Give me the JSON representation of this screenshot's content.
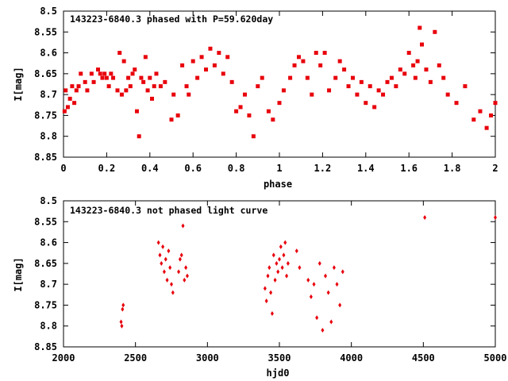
{
  "colors": {
    "points": "#e8000b",
    "axis": "#000000",
    "background": "#ffffff"
  },
  "chart_data": [
    {
      "type": "scatter",
      "title": "143223-6840.3 phased with P=59.620day",
      "xlabel": "phase",
      "ylabel": "I[mag]",
      "xlim": [
        0,
        2
      ],
      "ylim": [
        8.85,
        8.5
      ],
      "y_inverted": true,
      "grid": false,
      "xticks": [
        0,
        0.2,
        0.4,
        0.6,
        0.8,
        1,
        1.2,
        1.4,
        1.6,
        1.8,
        2
      ],
      "xtick_labels": [
        "0",
        "0.2",
        "0.4",
        "0.6",
        "0.8",
        "1",
        "1.2",
        "1.4",
        "1.6",
        "1.8",
        "2"
      ],
      "yticks": [
        8.5,
        8.55,
        8.6,
        8.65,
        8.7,
        8.75,
        8.8,
        8.85
      ],
      "ytick_labels": [
        "8.5",
        "8.55",
        "8.6",
        "8.65",
        "8.7",
        "8.75",
        "8.8",
        "8.85"
      ],
      "marker": "square",
      "series": [
        {
          "x": [
            0.005,
            0.01,
            0.02,
            0.03,
            0.04,
            0.05,
            0.06,
            0.07,
            0.08,
            0.1,
            0.11,
            0.13,
            0.14,
            0.16,
            0.17,
            0.18,
            0.19,
            0.2,
            0.21,
            0.22,
            0.23,
            0.25,
            0.26,
            0.27,
            0.28,
            0.29,
            0.3,
            0.31,
            0.32,
            0.33,
            0.34,
            0.35,
            0.36,
            0.37,
            0.38,
            0.39,
            0.4,
            0.41,
            0.42,
            0.43,
            0.45,
            0.47,
            0.5,
            0.51,
            0.53,
            0.55,
            0.57,
            0.58,
            0.6,
            0.62,
            0.64,
            0.66,
            0.68,
            0.7,
            0.72,
            0.74,
            0.76,
            0.78,
            0.8,
            0.82,
            0.84,
            0.86,
            0.88,
            0.9,
            0.92,
            0.95,
            0.97,
            1.0,
            1.02,
            1.05,
            1.07,
            1.09,
            1.11,
            1.13,
            1.15,
            1.17,
            1.19,
            1.21,
            1.23,
            1.26,
            1.28,
            1.3,
            1.32,
            1.34,
            1.36,
            1.38,
            1.4,
            1.42,
            1.44,
            1.46,
            1.48,
            1.5,
            1.52,
            1.54,
            1.56,
            1.58,
            1.6,
            1.62,
            1.63,
            1.64,
            1.65,
            1.66,
            1.68,
            1.7,
            1.72,
            1.74,
            1.76,
            1.78,
            1.82,
            1.86,
            1.9,
            1.93,
            1.96,
            1.98,
            2.0
          ],
          "y": [
            8.74,
            8.69,
            8.73,
            8.71,
            8.68,
            8.72,
            8.69,
            8.68,
            8.65,
            8.67,
            8.69,
            8.65,
            8.67,
            8.64,
            8.65,
            8.66,
            8.65,
            8.66,
            8.68,
            8.65,
            8.66,
            8.69,
            8.6,
            8.7,
            8.62,
            8.69,
            8.66,
            8.68,
            8.65,
            8.64,
            8.74,
            8.8,
            8.66,
            8.67,
            8.61,
            8.69,
            8.66,
            8.71,
            8.68,
            8.65,
            8.68,
            8.67,
            8.76,
            8.7,
            8.75,
            8.63,
            8.68,
            8.7,
            8.62,
            8.66,
            8.61,
            8.64,
            8.59,
            8.63,
            8.6,
            8.65,
            8.61,
            8.67,
            8.74,
            8.73,
            8.7,
            8.75,
            8.8,
            8.68,
            8.66,
            8.74,
            8.76,
            8.72,
            8.69,
            8.66,
            8.63,
            8.61,
            8.62,
            8.66,
            8.7,
            8.6,
            8.63,
            8.6,
            8.69,
            8.66,
            8.62,
            8.64,
            8.68,
            8.66,
            8.7,
            8.67,
            8.72,
            8.68,
            8.73,
            8.69,
            8.7,
            8.67,
            8.66,
            8.68,
            8.64,
            8.65,
            8.6,
            8.63,
            8.66,
            8.62,
            8.54,
            8.58,
            8.64,
            8.67,
            8.55,
            8.63,
            8.66,
            8.7,
            8.72,
            8.68,
            8.76,
            8.74,
            8.78,
            8.75,
            8.72
          ]
        }
      ]
    },
    {
      "type": "scatter",
      "title": "143223-6840.3 not phased light curve",
      "xlabel": "hjd0",
      "ylabel": "I[mag]",
      "xlim": [
        2000,
        5000
      ],
      "ylim": [
        8.85,
        8.5
      ],
      "y_inverted": true,
      "grid": false,
      "xticks": [
        2000,
        2500,
        3000,
        3500,
        4000,
        4500,
        5000
      ],
      "xtick_labels": [
        "2000",
        "2500",
        "3000",
        "3500",
        "4000",
        "4500",
        "5000"
      ],
      "yticks": [
        8.5,
        8.55,
        8.6,
        8.65,
        8.7,
        8.75,
        8.8,
        8.85
      ],
      "ytick_labels": [
        "8.5",
        "8.55",
        "8.6",
        "8.65",
        "8.7",
        "8.75",
        "8.8",
        "8.85"
      ],
      "marker": "diamond",
      "series": [
        {
          "x": [
            2400,
            2405,
            2410,
            2415,
            2660,
            2670,
            2680,
            2690,
            2700,
            2710,
            2720,
            2730,
            2740,
            2750,
            2760,
            2800,
            2810,
            2820,
            2830,
            2840,
            2850,
            2860,
            3400,
            3410,
            3420,
            3430,
            3440,
            3450,
            3460,
            3470,
            3480,
            3490,
            3500,
            3510,
            3520,
            3530,
            3540,
            3550,
            3560,
            3620,
            3640,
            3700,
            3720,
            3740,
            3760,
            3780,
            3800,
            3820,
            3840,
            3860,
            3880,
            3900,
            3920,
            3940,
            4510,
            5000
          ],
          "y": [
            8.79,
            8.8,
            8.76,
            8.75,
            8.6,
            8.63,
            8.65,
            8.61,
            8.67,
            8.64,
            8.69,
            8.62,
            8.66,
            8.7,
            8.72,
            8.67,
            8.64,
            8.63,
            8.56,
            8.69,
            8.66,
            8.68,
            8.71,
            8.74,
            8.68,
            8.66,
            8.72,
            8.77,
            8.63,
            8.69,
            8.65,
            8.67,
            8.64,
            8.61,
            8.66,
            8.63,
            8.6,
            8.68,
            8.65,
            8.62,
            8.66,
            8.69,
            8.73,
            8.7,
            8.78,
            8.65,
            8.81,
            8.68,
            8.72,
            8.79,
            8.66,
            8.7,
            8.75,
            8.67,
            8.54,
            8.54
          ]
        }
      ]
    }
  ]
}
